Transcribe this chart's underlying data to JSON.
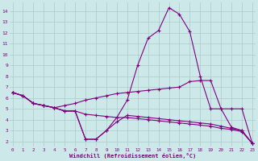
{
  "xlabel": "Windchill (Refroidissement éolien,°C)",
  "x": [
    0,
    1,
    2,
    3,
    4,
    5,
    6,
    7,
    8,
    9,
    10,
    11,
    12,
    13,
    14,
    15,
    16,
    17,
    18,
    19,
    20,
    21,
    22,
    23
  ],
  "line1": [
    6.5,
    6.2,
    5.5,
    5.3,
    5.1,
    5.3,
    5.5,
    5.8,
    6.0,
    6.2,
    6.4,
    6.5,
    6.6,
    6.7,
    6.8,
    6.9,
    7.0,
    7.5,
    7.6,
    7.6,
    5.0,
    3.3,
    3.0,
    1.8
  ],
  "line2": [
    6.5,
    6.2,
    5.5,
    5.3,
    5.1,
    4.8,
    4.8,
    2.2,
    2.2,
    3.0,
    4.2,
    5.8,
    9.0,
    11.5,
    12.2,
    14.3,
    13.7,
    12.1,
    8.0,
    5.0,
    5.0,
    5.0,
    5.0,
    1.8
  ],
  "line3": [
    6.5,
    6.2,
    5.5,
    5.3,
    5.1,
    4.8,
    4.8,
    4.5,
    4.4,
    4.3,
    4.2,
    4.2,
    4.1,
    4.0,
    3.9,
    3.8,
    3.7,
    3.6,
    3.5,
    3.4,
    3.2,
    3.1,
    2.9,
    1.8
  ],
  "line4": [
    6.5,
    6.2,
    5.5,
    5.3,
    5.1,
    4.8,
    4.8,
    2.2,
    2.2,
    3.0,
    3.8,
    4.4,
    4.3,
    4.2,
    4.1,
    4.0,
    3.9,
    3.8,
    3.7,
    3.6,
    3.4,
    3.2,
    3.0,
    1.8
  ],
  "line_color": "#800080",
  "bg_color": "#cce8e8",
  "grid_color": "#aacaca",
  "ylim": [
    1.5,
    14.5
  ],
  "xlim": [
    -0.5,
    23.5
  ]
}
